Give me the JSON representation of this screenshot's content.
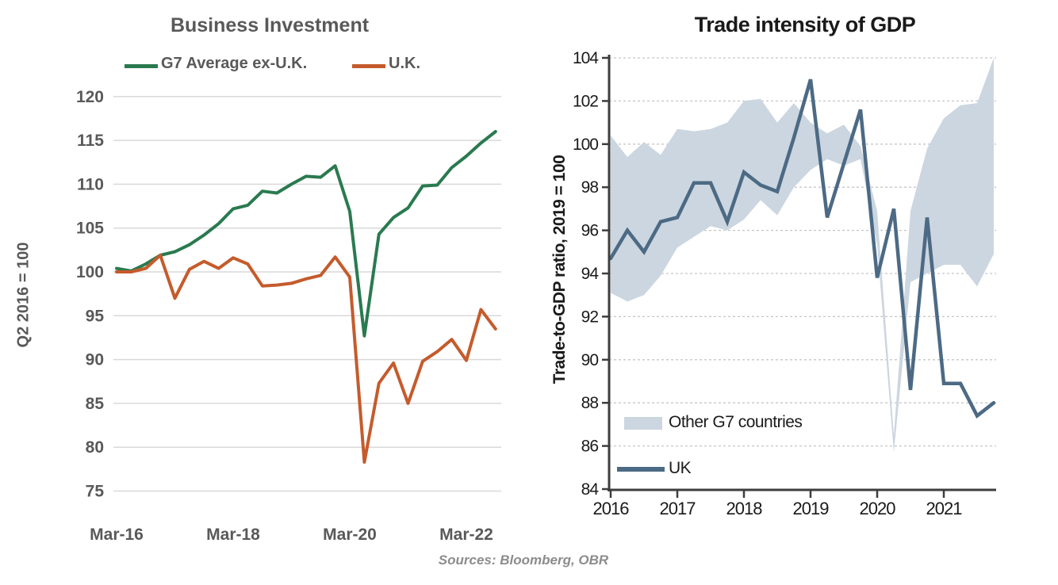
{
  "page": {
    "background": "#ffffff"
  },
  "source_note": "Sources: Bloomberg, OBR",
  "chart_data": [
    {
      "type": "line",
      "title": "Business Investment",
      "ylabel": "Q2 2016 = 100",
      "ylim": [
        75,
        120
      ],
      "grid": "horizontal-solid",
      "legend_position": "top",
      "y_ticks": [
        75,
        80,
        85,
        90,
        95,
        100,
        105,
        110,
        115,
        120
      ],
      "x_tick_labels": [
        "Mar-16",
        "Mar-18",
        "Mar-20",
        "Mar-22"
      ],
      "x_tick_quarter_index": [
        0,
        8,
        16,
        24
      ],
      "x_period": "quarterly Mar-16 to Sep-22",
      "legend": [
        {
          "label": "G7 Average ex-U.K.",
          "color": "#2a7a4f"
        },
        {
          "label": "U.K.",
          "color": "#c55b2c"
        }
      ],
      "series": [
        {
          "name": "G7 Average ex-U.K.",
          "color": "#2a7a4f",
          "values": [
            100.4,
            100.1,
            100.9,
            101.9,
            102.3,
            103.1,
            104.2,
            105.5,
            107.2,
            107.6,
            109.2,
            109.0,
            110.0,
            110.9,
            110.8,
            112.1,
            106.9,
            92.7,
            104.3,
            106.2,
            107.3,
            109.8,
            109.9,
            111.9,
            113.2,
            114.7,
            116.0
          ]
        },
        {
          "name": "U.K.",
          "color": "#c55b2c",
          "values": [
            100.0,
            100.0,
            100.4,
            101.9,
            97.0,
            100.3,
            101.2,
            100.4,
            101.6,
            100.9,
            98.4,
            98.5,
            98.7,
            99.2,
            99.6,
            101.7,
            99.4,
            78.3,
            87.3,
            89.6,
            85.0,
            89.8,
            90.9,
            92.3,
            89.9,
            95.7,
            93.5
          ]
        }
      ],
      "text_color": "#595959",
      "gridline_color": "#d9d9d9"
    },
    {
      "type": "line+band",
      "title": "Trade intensity of GDP",
      "ylabel": "Trade-to-GDP ratio, 2019 = 100",
      "ylim": [
        84,
        104
      ],
      "grid": "horizontal-dashed",
      "legend_position": "inside-bottom-left",
      "y_ticks": [
        84,
        86,
        88,
        90,
        92,
        94,
        96,
        98,
        100,
        102,
        104
      ],
      "x_tick_labels": [
        "2016",
        "2017",
        "2018",
        "2019",
        "2020",
        "2021"
      ],
      "x_tick_quarter_index": [
        0,
        4,
        8,
        12,
        16,
        20
      ],
      "x_period": "quarterly 2016Q1 to 2021Q4",
      "legend": [
        {
          "label": "Other G7 countries",
          "swatch": "band",
          "color": "#ccd6e0"
        },
        {
          "label": "UK",
          "swatch": "line",
          "color": "#4c6a84"
        }
      ],
      "band": {
        "name": "Other G7 countries",
        "color": "#ccd6e0",
        "lower": [
          93.1,
          92.7,
          93.0,
          93.9,
          95.2,
          95.7,
          96.2,
          96.0,
          96.5,
          97.4,
          96.7,
          98.0,
          98.8,
          99.3,
          99.0,
          99.3,
          95.3,
          85.7,
          93.6,
          94.0,
          94.4,
          94.4,
          93.4,
          94.9
        ],
        "upper": [
          100.4,
          99.4,
          100.1,
          99.5,
          100.7,
          100.6,
          100.7,
          101.0,
          102.0,
          102.1,
          101.0,
          101.9,
          101.0,
          100.5,
          100.9,
          99.9,
          96.9,
          86.5,
          96.9,
          99.8,
          101.2,
          101.8,
          101.9,
          104.0
        ]
      },
      "series": [
        {
          "name": "UK",
          "color": "#4c6a84",
          "values": [
            94.7,
            96.0,
            95.0,
            96.4,
            96.6,
            98.2,
            98.2,
            96.4,
            98.7,
            98.1,
            97.8,
            100.3,
            103.0,
            96.6,
            99.1,
            101.6,
            93.8,
            97.0,
            88.6,
            96.6,
            88.9,
            88.9,
            87.4,
            88.0
          ]
        }
      ],
      "text_color": "#1a1a1a",
      "axis_color": "#3d3d3d",
      "gridline_color": "#c6c6c6"
    }
  ]
}
